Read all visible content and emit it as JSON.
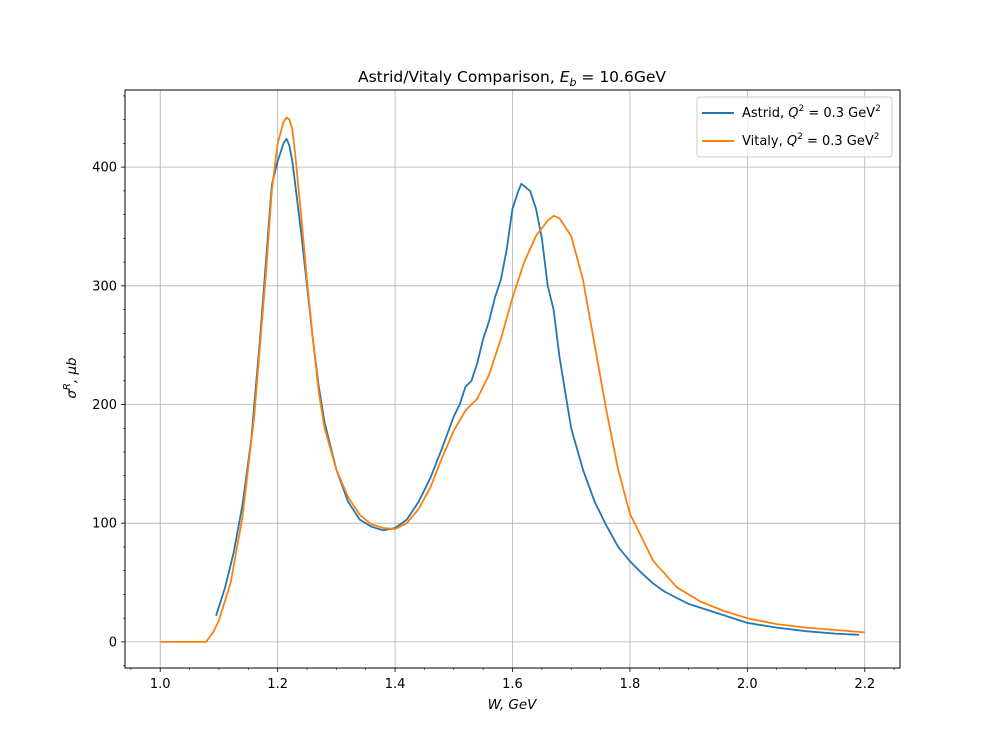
{
  "chart_data": {
    "type": "line",
    "title_main": "Astrid/Vitaly Comparison, ",
    "title_math": "E",
    "title_sub": "b",
    "title_rest": " = 10.6GeV",
    "xlabel": "W, GeV",
    "ylabel_sigma": "σ",
    "ylabel_sup": "R",
    "ylabel_rest": ", μb",
    "xlim": [
      0.94,
      2.26
    ],
    "ylim": [
      -22,
      465
    ],
    "xticks": [
      "1.0",
      "1.2",
      "1.4",
      "1.6",
      "1.8",
      "2.0",
      "2.2"
    ],
    "xtick_values": [
      1.0,
      1.2,
      1.4,
      1.6,
      1.8,
      2.0,
      2.2
    ],
    "yticks": [
      "0",
      "100",
      "200",
      "300",
      "400"
    ],
    "ytick_values": [
      0,
      100,
      200,
      300,
      400
    ],
    "grid": true,
    "legend_position": "top-right",
    "series": [
      {
        "name_prefix": "Astrid, ",
        "name_math": "Q",
        "name_sup": "2",
        "name_rest": " = 0.3 GeV",
        "name_sup2": "2",
        "color": "#1f77b4",
        "x": [
          1.095,
          1.11,
          1.125,
          1.14,
          1.155,
          1.17,
          1.18,
          1.19,
          1.2,
          1.21,
          1.215,
          1.22,
          1.225,
          1.23,
          1.24,
          1.25,
          1.26,
          1.27,
          1.28,
          1.3,
          1.32,
          1.34,
          1.36,
          1.38,
          1.39,
          1.4,
          1.42,
          1.44,
          1.46,
          1.48,
          1.5,
          1.51,
          1.52,
          1.53,
          1.54,
          1.55,
          1.56,
          1.57,
          1.58,
          1.59,
          1.6,
          1.61,
          1.615,
          1.62,
          1.63,
          1.64,
          1.65,
          1.66,
          1.67,
          1.68,
          1.69,
          1.7,
          1.72,
          1.74,
          1.76,
          1.78,
          1.8,
          1.82,
          1.84,
          1.86,
          1.88,
          1.9,
          1.95,
          2.0,
          2.05,
          2.1,
          2.15,
          2.19
        ],
        "y": [
          22,
          45,
          75,
          115,
          170,
          255,
          320,
          385,
          405,
          420,
          424,
          418,
          405,
          385,
          345,
          300,
          255,
          215,
          185,
          145,
          118,
          103,
          97,
          94,
          95,
          96,
          103,
          118,
          138,
          163,
          190,
          200,
          215,
          220,
          235,
          255,
          270,
          290,
          305,
          330,
          365,
          380,
          386,
          384,
          380,
          365,
          340,
          300,
          280,
          240,
          210,
          180,
          145,
          118,
          98,
          80,
          68,
          58,
          49,
          42,
          37,
          32,
          24,
          16,
          12,
          9,
          7,
          6
        ]
      },
      {
        "name_prefix": "Vitaly, ",
        "name_math": "Q",
        "name_sup": "2",
        "name_rest": " = 0.3 GeV",
        "name_sup2": "2",
        "color": "#ff7f0e",
        "x": [
          1.0,
          1.02,
          1.04,
          1.06,
          1.078,
          1.09,
          1.1,
          1.12,
          1.14,
          1.16,
          1.18,
          1.19,
          1.2,
          1.21,
          1.215,
          1.22,
          1.225,
          1.23,
          1.24,
          1.25,
          1.26,
          1.27,
          1.28,
          1.3,
          1.32,
          1.34,
          1.36,
          1.38,
          1.4,
          1.42,
          1.44,
          1.46,
          1.48,
          1.5,
          1.52,
          1.54,
          1.56,
          1.58,
          1.6,
          1.62,
          1.64,
          1.66,
          1.67,
          1.68,
          1.7,
          1.72,
          1.74,
          1.76,
          1.78,
          1.8,
          1.84,
          1.88,
          1.92,
          1.96,
          2.0,
          2.05,
          2.1,
          2.15,
          2.2
        ],
        "y": [
          0,
          0,
          0,
          0,
          0,
          8,
          18,
          50,
          105,
          190,
          310,
          380,
          420,
          438,
          442,
          440,
          432,
          410,
          360,
          305,
          255,
          210,
          180,
          145,
          122,
          107,
          99,
          96,
          95,
          100,
          112,
          130,
          155,
          178,
          195,
          205,
          225,
          255,
          290,
          320,
          342,
          355,
          359,
          357,
          342,
          305,
          250,
          195,
          145,
          108,
          68,
          46,
          34,
          26,
          20,
          15,
          12,
          10,
          8
        ]
      }
    ]
  }
}
